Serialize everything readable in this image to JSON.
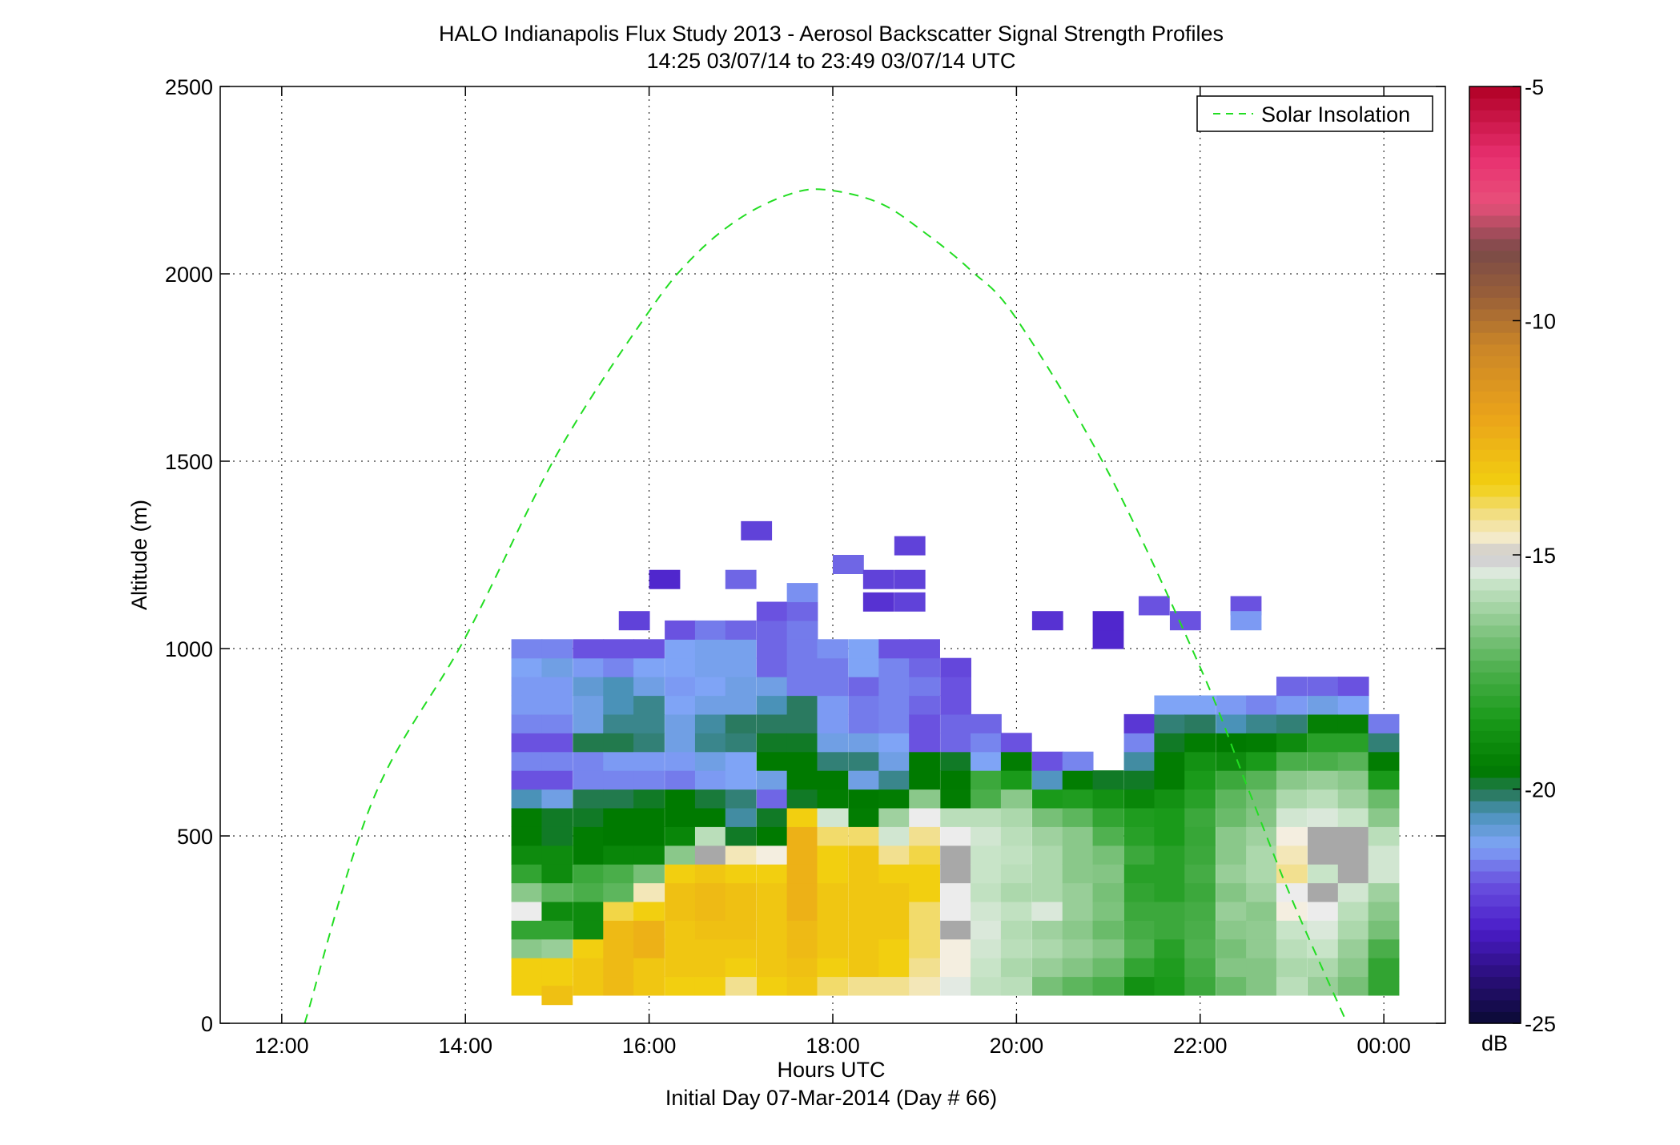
{
  "chart_data": {
    "type": "heatmap",
    "title": "HALO Indianapolis Flux Study 2013 - Aerosol Backscatter Signal Strength Profiles",
    "subtitle": "14:25 03/07/14 to 23:49 03/07/14  UTC",
    "xlabel": "Hours UTC",
    "xlabel2": "Initial Day 07-Mar-2014 (Day # 66)",
    "ylabel": "Altitude (m)",
    "x_unit": "hours UTC",
    "xlim": [
      11.33,
      24.67
    ],
    "ylim": [
      0,
      2500
    ],
    "x_ticks": [
      12,
      14,
      16,
      18,
      20,
      22,
      24
    ],
    "x_tick_labels": [
      "12:00",
      "14:00",
      "16:00",
      "18:00",
      "20:00",
      "22:00",
      "00:00"
    ],
    "y_ticks": [
      0,
      500,
      1000,
      1500,
      2000,
      2500
    ],
    "y_tick_labels": [
      "0",
      "500",
      "1000",
      "1500",
      "2000",
      "2500"
    ],
    "grid": true,
    "legend": {
      "position": "top-right",
      "entries": [
        "Solar Insolation"
      ]
    },
    "colorbar": {
      "label": "dB",
      "range": [
        -25,
        -5
      ],
      "ticks": [
        -25,
        -20,
        -15,
        -10,
        -5
      ],
      "tick_labels": [
        "-25",
        "-20",
        "-15",
        "-10",
        "-5"
      ],
      "colormap": [
        [
          -25,
          "#0a0a33"
        ],
        [
          -24,
          "#2a0e7a"
        ],
        [
          -23,
          "#4a1cc8"
        ],
        [
          -22,
          "#6a52e0"
        ],
        [
          -21.2,
          "#7fa4f6"
        ],
        [
          -20.5,
          "#4a92b8"
        ],
        [
          -20.1,
          "#2a7a60"
        ],
        [
          -19.6,
          "#007a00"
        ],
        [
          -18.5,
          "#1a9a1a"
        ],
        [
          -17.5,
          "#4aae4a"
        ],
        [
          -16.5,
          "#8ac88a"
        ],
        [
          -15.6,
          "#c8e4c8"
        ],
        [
          -15.2,
          "#ececec"
        ],
        [
          -15,
          "#a8a8a8"
        ],
        [
          -14.8,
          "#f4eee0"
        ],
        [
          -14.2,
          "#f2e090"
        ],
        [
          -13.5,
          "#f2cf10"
        ],
        [
          -12,
          "#eaa21a"
        ],
        [
          -10.5,
          "#c98428"
        ],
        [
          -9.5,
          "#9a6038"
        ],
        [
          -8.5,
          "#7a4a48"
        ],
        [
          -7.5,
          "#e8507a"
        ],
        [
          -6.5,
          "#e83070"
        ],
        [
          -5,
          "#b00025"
        ]
      ]
    },
    "series_line": {
      "name": "Solar Insolation",
      "style": "dashed",
      "color": "#22dd22",
      "x": [
        12.25,
        13,
        14,
        15,
        16,
        16.5,
        17,
        17.5,
        17.9,
        18.5,
        19,
        19.5,
        20,
        21,
        22,
        22.5,
        23,
        23.6
      ],
      "y": [
        0,
        600,
        1030,
        1520,
        1900,
        2050,
        2150,
        2210,
        2225,
        2190,
        2110,
        2010,
        1880,
        1470,
        950,
        640,
        330,
        0
      ]
    },
    "heatmap": {
      "x_start": 14.5,
      "col_width": 0.333,
      "y_start": 75,
      "row_height": 50,
      "columns": [
        {
          "time": 14.5,
          "dB": [
            -13.5,
            -13.5,
            -16.5,
            -18,
            -15.2,
            -16.5,
            -18,
            -19,
            -19.5,
            -19.5,
            -20.5,
            -22,
            -21.5,
            -22,
            -21.5,
            -21.3,
            -21.3,
            -21.2,
            -21.5
          ]
        },
        {
          "time": 14.83,
          "dB": [
            -13.5,
            -13.5,
            -16.3,
            -18,
            -19,
            -17.2,
            -19,
            -19,
            -19.8,
            -19.8,
            -21,
            -22,
            -21.5,
            -22,
            -21.5,
            -21.3,
            -21.3,
            -21,
            -21.5
          ]
        },
        {
          "time": 15.17,
          "dB": [
            -13.2,
            -13.2,
            -13.5,
            -19,
            -19,
            -17.5,
            -17.8,
            -19.5,
            -19.5,
            -19.8,
            -20,
            -21.5,
            -21.5,
            -20,
            -21,
            -21,
            -20.8,
            -21.3,
            -22
          ]
        },
        {
          "time": 15.5,
          "dB": [
            -12.8,
            -12.8,
            -12.8,
            -12.8,
            -13.8,
            -17.2,
            -17.5,
            -19.2,
            -19.6,
            -19.6,
            -20,
            -21.5,
            -21.3,
            -20,
            -20.3,
            -20.5,
            -20.5,
            -21.5,
            -22
          ]
        },
        {
          "time": 15.83,
          "dB": [
            -13.2,
            -13.2,
            -12.5,
            -12.5,
            -13.5,
            -14.5,
            -16.8,
            -19.2,
            -19.6,
            -19.6,
            -19.8,
            -21.5,
            -21.3,
            -20.2,
            -20.3,
            -20.3,
            -21,
            -21.2,
            -22
          ]
        },
        {
          "time": 16.17,
          "dB": [
            -13.5,
            -13.2,
            -13.2,
            -13.2,
            -13,
            -13,
            -13.5,
            -16.5,
            -19.2,
            -19.6,
            -19.6,
            -21.6,
            -21.3,
            -21,
            -21,
            -21.2,
            -21.3,
            -21.2,
            -21.2,
            -22
          ]
        },
        {
          "time": 16.5,
          "dB": [
            -13.5,
            -13.2,
            -13.2,
            -13,
            -12.8,
            -12.8,
            -13.2,
            -15,
            -15.8,
            -19.6,
            -19.9,
            -21.3,
            -21,
            -20.3,
            -20.4,
            -21,
            -21.2,
            -21.1,
            -21.1,
            -21.6
          ]
        },
        {
          "time": 16.83,
          "dB": [
            -14.2,
            -13.5,
            -13.2,
            -13,
            -13,
            -13,
            -13.5,
            -14.5,
            -19.8,
            -20.4,
            -20.2,
            -21.2,
            -21.2,
            -20.2,
            -20.1,
            -21,
            -21,
            -21.1,
            -21.1,
            -21.8
          ]
        },
        {
          "time": 17.17,
          "dB": [
            -13.5,
            -13.2,
            -13.2,
            -13.2,
            -13.2,
            -13.2,
            -13.5,
            -14.8,
            -19.6,
            -19.8,
            -21.8,
            -21,
            -19.6,
            -19.8,
            -20.1,
            -20.5,
            -21,
            -21.8,
            -21.8,
            -21.8,
            -22
          ]
        },
        {
          "time": 17.5,
          "dB": [
            -13.2,
            -13,
            -12.8,
            -12.8,
            -12.5,
            -12.5,
            -12.5,
            -12.5,
            -12.5,
            -13.5,
            -19.8,
            -19.6,
            -19.6,
            -19.8,
            -20.1,
            -20.1,
            -21.6,
            -21.6,
            -21.6,
            -21.6,
            -21.8,
            -21.4
          ]
        },
        {
          "time": 17.83,
          "dB": [
            -14,
            -13.5,
            -13.2,
            -13.2,
            -13.2,
            -13.2,
            -13.5,
            -13.5,
            -14,
            -15.5,
            -19.5,
            -19.6,
            -20.2,
            -21,
            -21.3,
            -21.3,
            -21.6,
            -21.6,
            -21.4
          ]
        },
        {
          "time": 18.17,
          "dB": [
            -14.2,
            -13.2,
            -13.2,
            -13.2,
            -13.2,
            -13.2,
            -13.2,
            -13.2,
            -14,
            -19.5,
            -19.6,
            -21,
            -20.2,
            -21,
            -21.6,
            -21.6,
            -21.8,
            -21.2,
            -21.2
          ]
        },
        {
          "time": 18.5,
          "dB": [
            -14.2,
            -13.5,
            -13.5,
            -13.2,
            -13.2,
            -13.2,
            -13.5,
            -14.2,
            -15.5,
            -16.2,
            -19.5,
            -20.3,
            -21,
            -21.2,
            -21.5,
            -21.5,
            -21.5,
            -21.5,
            -22
          ]
        },
        {
          "time": 18.83,
          "dB": [
            -14.5,
            -14.2,
            -14,
            -14,
            -14,
            -13.5,
            -13.5,
            -13.8,
            -14.2,
            -15.2,
            -16.5,
            -19.6,
            -19.6,
            -22,
            -22,
            -21.8,
            -21.6,
            -21.8,
            -22
          ]
        },
        {
          "time": 19.17,
          "dB": [
            -15.3,
            -14.8,
            -14.8,
            -15,
            -15.2,
            -15.2,
            -15,
            -15,
            -15.2,
            -15.8,
            -19.5,
            -19.6,
            -19.8,
            -21.8,
            -21.8,
            -22,
            -22,
            -22.2
          ]
        },
        {
          "time": 19.5,
          "dB": [
            -15.7,
            -15.6,
            -15.5,
            -15.4,
            -15.5,
            -15.7,
            -15.6,
            -15.6,
            -15.5,
            -15.8,
            -17.5,
            -17.8,
            -21.2,
            -21.5,
            -21.8
          ]
        },
        {
          "time": 19.83,
          "dB": [
            -15.8,
            -16,
            -15.8,
            -15.9,
            -15.7,
            -16,
            -15.8,
            -15.7,
            -15.8,
            -16,
            -16.5,
            -18.5,
            -19.5,
            -22
          ]
        },
        {
          "time": 20.17,
          "dB": [
            -16.8,
            -16.3,
            -16,
            -16.2,
            -15.4,
            -16,
            -16,
            -16,
            -16.2,
            -16.8,
            -18.5,
            -20.6,
            -22
          ]
        },
        {
          "time": 20.5,
          "dB": [
            -17.2,
            -16.6,
            -16.3,
            -16.5,
            -16.3,
            -16.3,
            -16.5,
            -16.5,
            -16.5,
            -17.2,
            -18.4,
            -19.5,
            -21.5
          ]
        },
        {
          "time": 20.83,
          "dB": [
            -17.5,
            -17,
            -16.6,
            -17,
            -16.7,
            -16.8,
            -16.6,
            -16.8,
            -17.4,
            -18,
            -18.8,
            -19.8
          ]
        },
        {
          "time": 21.17,
          "dB": [
            -18.8,
            -18,
            -17.4,
            -17.6,
            -17.8,
            -18,
            -18.2,
            -17.8,
            -18.2,
            -18.4,
            -19.2,
            -19.8,
            -20.4,
            -21.5,
            -22.5
          ]
        },
        {
          "time": 21.5,
          "dB": [
            -18.5,
            -18.4,
            -18.2,
            -17.8,
            -17.8,
            -18.2,
            -18.2,
            -18.2,
            -18.5,
            -18.5,
            -18.8,
            -19.5,
            -19.5,
            -19.8,
            -20.2,
            -21.2
          ]
        },
        {
          "time": 21.83,
          "dB": [
            -17.8,
            -17.6,
            -17.4,
            -17.5,
            -17.6,
            -17.8,
            -17.6,
            -17.8,
            -17.9,
            -17.8,
            -18.2,
            -18.5,
            -18.8,
            -19.5,
            -20.1,
            -21.2
          ]
        },
        {
          "time": 22.17,
          "dB": [
            -17,
            -16.6,
            -16.8,
            -16.5,
            -16.3,
            -16.6,
            -16.3,
            -16.5,
            -16.5,
            -17,
            -17.2,
            -17.8,
            -19,
            -19.6,
            -20.5,
            -21.3
          ]
        },
        {
          "time": 22.5,
          "dB": [
            -16.6,
            -16.6,
            -16.4,
            -16.4,
            -16.5,
            -16.2,
            -16,
            -16,
            -16.2,
            -16.6,
            -16.8,
            -17.3,
            -18.5,
            -19.5,
            -20.3,
            -21.5
          ]
        },
        {
          "time": 22.83,
          "dB": [
            -15.8,
            -16,
            -15.8,
            -15.6,
            -14.8,
            -15.2,
            -14.2,
            -14.5,
            -14.8,
            -15.5,
            -16,
            -16.5,
            -17.5,
            -19,
            -20.2,
            -21.3,
            -21.8
          ]
        },
        {
          "time": 23.17,
          "dB": [
            -16.3,
            -16,
            -15.6,
            -15.4,
            -15.2,
            -15,
            -15.6,
            -15,
            -15,
            -15.4,
            -15.8,
            -16.3,
            -17.5,
            -18.2,
            -19.4,
            -21,
            -21.8
          ]
        },
        {
          "time": 23.5,
          "dB": [
            -16.8,
            -16.5,
            -16.3,
            -16,
            -15.8,
            -15.5,
            -15,
            -15,
            -15,
            -15.6,
            -16.2,
            -16.5,
            -17.3,
            -18.2,
            -19.4,
            -21.2,
            -22
          ]
        },
        {
          "time": 23.83,
          "dB": [
            -18,
            -18,
            -17.5,
            -16.8,
            -16.5,
            -16.2,
            -15.5,
            -15.5,
            -15.8,
            -16.5,
            -17,
            -18.5,
            -19.5,
            -20.2,
            -21.6
          ]
        }
      ],
      "isolated_cells": [
        {
          "time": 14.83,
          "alt": 50,
          "dB": -13
        },
        {
          "time": 15.67,
          "alt": 1050,
          "dB": -22.3
        },
        {
          "time": 16.0,
          "alt": 1160,
          "dB": -22.8
        },
        {
          "time": 16.83,
          "alt": 1160,
          "dB": -21.8
        },
        {
          "time": 17.0,
          "alt": 1290,
          "dB": -22.3
        },
        {
          "time": 18.0,
          "alt": 1200,
          "dB": -21.8
        },
        {
          "time": 18.33,
          "alt": 1160,
          "dB": -22.3
        },
        {
          "time": 18.67,
          "alt": 1160,
          "dB": -22.3
        },
        {
          "time": 18.67,
          "alt": 1250,
          "dB": -22.3
        },
        {
          "time": 18.33,
          "alt": 1100,
          "dB": -22.6
        },
        {
          "time": 18.67,
          "alt": 1100,
          "dB": -22.3
        },
        {
          "time": 20.17,
          "alt": 1050,
          "dB": -22.6
        },
        {
          "time": 20.83,
          "alt": 1000,
          "dB": -22.8
        },
        {
          "time": 20.83,
          "alt": 1050,
          "dB": -22.8
        },
        {
          "time": 21.33,
          "alt": 1090,
          "dB": -22
        },
        {
          "time": 21.67,
          "alt": 1050,
          "dB": -22
        },
        {
          "time": 22.33,
          "alt": 1090,
          "dB": -22
        },
        {
          "time": 22.33,
          "alt": 1050,
          "dB": -21.3
        }
      ]
    }
  }
}
